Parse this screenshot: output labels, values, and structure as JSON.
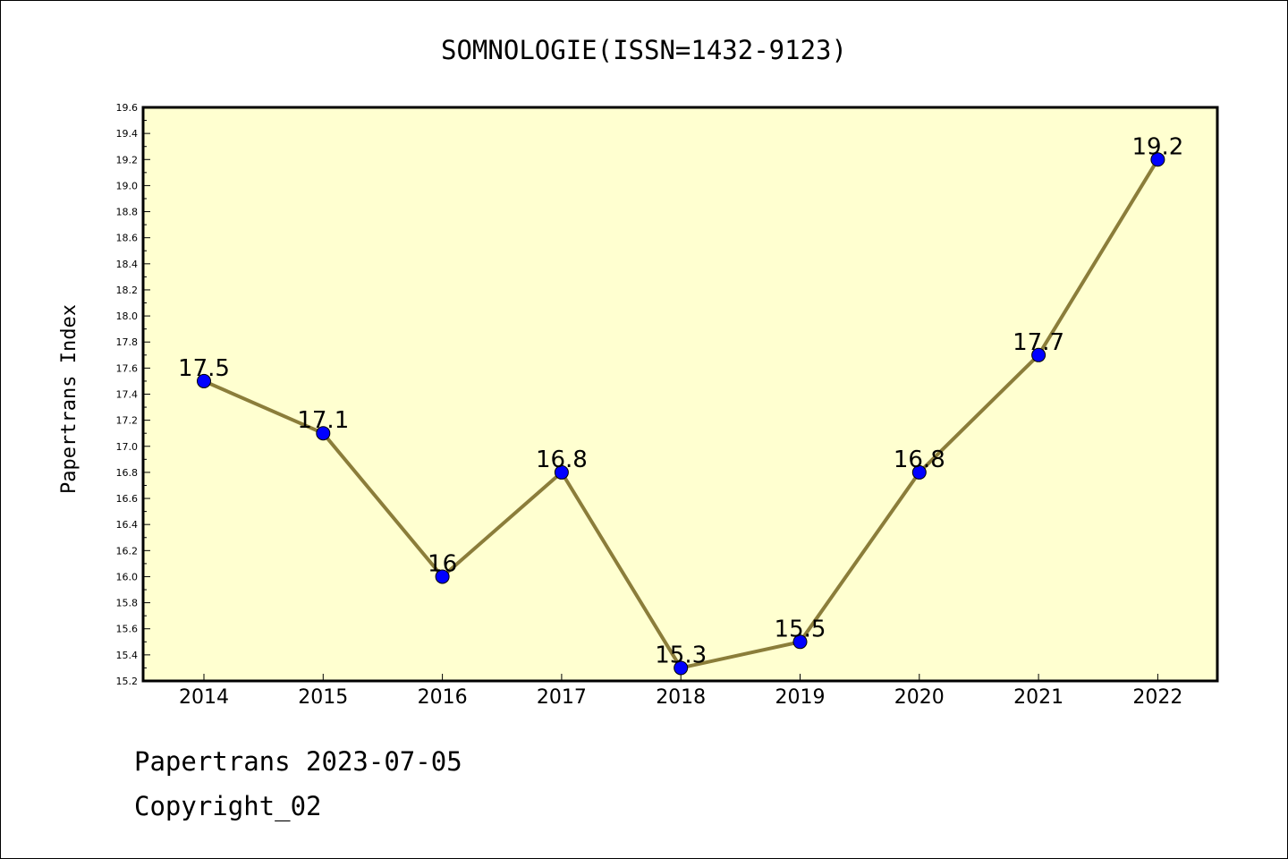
{
  "chart_data": {
    "type": "line",
    "title": "SOMNOLOGIE(ISSN=1432-9123)",
    "ylabel": "Papertrans Index",
    "xlabel": "",
    "ylim": [
      15.2,
      19.6
    ],
    "yticks": [
      "15.2",
      "15.4",
      "15.6",
      "15.8",
      "16.0",
      "16.2",
      "16.4",
      "16.6",
      "16.8",
      "17.0",
      "17.2",
      "17.4",
      "17.6",
      "17.8",
      "18.0",
      "18.2",
      "18.4",
      "18.6",
      "18.8",
      "19.0",
      "19.2",
      "19.4",
      "19.6"
    ],
    "categories": [
      "2014",
      "2015",
      "2016",
      "2017",
      "2018",
      "2019",
      "2020",
      "2021",
      "2022"
    ],
    "series": [
      {
        "values": [
          17.5,
          17.1,
          16.0,
          16.8,
          15.3,
          15.5,
          16.8,
          17.7,
          19.2
        ],
        "labels": [
          "17.5",
          "17.1",
          "16",
          "16.8",
          "15.3",
          "15.5",
          "16.8",
          "17.7",
          "19.2"
        ]
      }
    ],
    "colors": {
      "plot_background": "#ffffd0",
      "line": "#8b7d3a",
      "marker": "#0000ff",
      "axis": "#000000"
    },
    "grid": false
  },
  "footer": {
    "line1": "Papertrans 2023-07-05",
    "line2": "Copyright_02"
  }
}
